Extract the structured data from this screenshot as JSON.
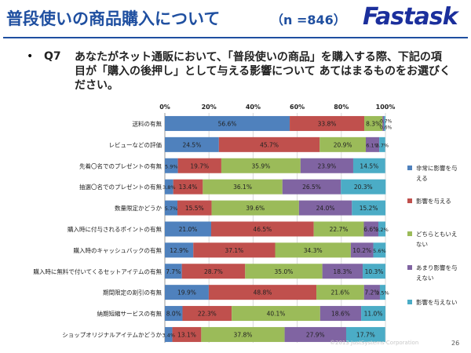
{
  "header": {
    "title": "普段使いの商品購入について",
    "sample": "（n =846）",
    "logo": "Fastask"
  },
  "question": {
    "bullet": "•",
    "number": "Q7",
    "text": "あなたがネット通販において、「普段使いの商品」を購入する際、下記の項目が「購入の後押し」として与える影響について あてはまるものをお選びください。"
  },
  "footer": {
    "copyright": "©2013 JustSystems Corporation",
    "page": "26"
  },
  "colors": {
    "very": "#4f81bd",
    "influence": "#c0504d",
    "neutral": "#9bbb59",
    "little": "#8064a2",
    "none": "#4bacc6"
  },
  "chart_data": {
    "type": "bar",
    "stacked": true,
    "orientation": "horizontal",
    "xlim": [
      0,
      100
    ],
    "x_ticks": [
      "0%",
      "20%",
      "40%",
      "60%",
      "80%",
      "100%"
    ],
    "grid": true,
    "legend_position": "right",
    "categories": [
      "送料の有無",
      "レビューなどの評価",
      "先着〇名でのプレゼントの有無",
      "抽選〇名でのプレゼントの有無",
      "数量限定かどうか",
      "購入時に付与されるポイントの有無",
      "購入時のキャッシュバックの有無",
      "購入時に無料で付いてくるセットアイテムの有無",
      "期間限定の割引の有無",
      "納期短縮サービスの有無",
      "ショップオリジナルアイテムかどうか"
    ],
    "series": [
      {
        "name": "非常に影響を与える",
        "color": "#4f81bd",
        "values": [
          56.6,
          24.5,
          5.9,
          3.8,
          5.7,
          21.0,
          12.9,
          7.7,
          19.9,
          8.0,
          3.4
        ]
      },
      {
        "name": "影響を与える",
        "color": "#c0504d",
        "values": [
          33.8,
          45.7,
          19.7,
          13.4,
          15.5,
          46.5,
          37.1,
          28.7,
          48.8,
          22.3,
          13.1
        ]
      },
      {
        "name": "どちらともいえない",
        "color": "#9bbb59",
        "values": [
          8.3,
          20.9,
          35.9,
          36.1,
          39.6,
          22.7,
          34.3,
          35.0,
          21.6,
          40.1,
          37.8
        ]
      },
      {
        "name": "あまり影響を与えない",
        "color": "#8064a2",
        "values": [
          0.7,
          6.1,
          23.9,
          26.5,
          24.0,
          6.6,
          10.2,
          18.3,
          7.2,
          18.6,
          27.9
        ]
      },
      {
        "name": "影響を与えない",
        "color": "#4bacc6",
        "values": [
          0.6,
          2.7,
          14.5,
          20.3,
          15.2,
          3.2,
          5.6,
          10.3,
          2.5,
          11.0,
          17.7
        ]
      }
    ],
    "labels": [
      [
        "56.6%",
        "33.8%",
        "8.3%",
        "0.7%",
        "0.6%"
      ],
      [
        "24.5%",
        "45.7%",
        "20.9%",
        "6.1%",
        "2.7%"
      ],
      [
        "5.9%",
        "19.7%",
        "35.9%",
        "23.9%",
        "14.5%"
      ],
      [
        "3.8%",
        "13.4%",
        "36.1%",
        "26.5%",
        "20.3%"
      ],
      [
        "5.7%",
        "15.5%",
        "39.6%",
        "24.0%",
        "15.2%"
      ],
      [
        "21.0%",
        "46.5%",
        "22.7%",
        "6.6%",
        "3.2%"
      ],
      [
        "12.9%",
        "37.1%",
        "34.3%",
        "10.2%",
        "5.6%"
      ],
      [
        "7.7%",
        "28.7%",
        "35.0%",
        "18.3%",
        "10.3%"
      ],
      [
        "19.9%",
        "48.8%",
        "21.6%",
        "7.2%",
        "2.5%"
      ],
      [
        "8.0%",
        "22.3%",
        "40.1%",
        "18.6%",
        "11.0%"
      ],
      [
        "3.4%",
        "13.1%",
        "37.8%",
        "27.9%",
        "17.7%"
      ]
    ]
  }
}
